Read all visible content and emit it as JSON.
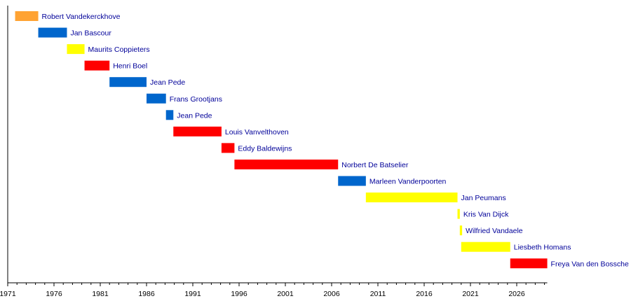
{
  "chart_data": {
    "type": "timeline",
    "title": "",
    "xlabel": "",
    "ylabel": "",
    "xlim": [
      1971,
      2029.3
    ],
    "xticks": [
      1971,
      1976,
      1981,
      1986,
      1991,
      1996,
      2001,
      2006,
      2011,
      2016,
      2021,
      2026
    ],
    "minor_tick_step": 1,
    "grid": false,
    "colors": {
      "orange": "#FFA333",
      "blue": "#0066CC",
      "yellow": "#FFFF00",
      "red": "#FF0000",
      "label": "#000099",
      "axis": "#000000"
    },
    "series": [
      {
        "name": "Robert Vandekerckhove",
        "start": 1971.8,
        "end": 1974.3,
        "color": "orange"
      },
      {
        "name": "Jan Bascour",
        "start": 1974.3,
        "end": 1977.4,
        "color": "blue"
      },
      {
        "name": "Maurits Coppieters",
        "start": 1977.4,
        "end": 1979.3,
        "color": "yellow"
      },
      {
        "name": "Henri Boel",
        "start": 1979.3,
        "end": 1982.0,
        "color": "red"
      },
      {
        "name": "Jean Pede",
        "start": 1982.0,
        "end": 1986.0,
        "color": "blue"
      },
      {
        "name": "Frans Grootjans",
        "start": 1986.0,
        "end": 1988.1,
        "color": "blue"
      },
      {
        "name": "Jean Pede",
        "start": 1988.1,
        "end": 1988.9,
        "color": "blue"
      },
      {
        "name": "Louis Vanvelthoven",
        "start": 1988.9,
        "end": 1994.1,
        "color": "red"
      },
      {
        "name": "Eddy Baldewijns",
        "start": 1994.1,
        "end": 1995.5,
        "color": "red"
      },
      {
        "name": "Norbert De Batselier",
        "start": 1995.5,
        "end": 2006.7,
        "color": "red"
      },
      {
        "name": "Marleen Vanderpoorten",
        "start": 2006.7,
        "end": 2009.7,
        "color": "blue"
      },
      {
        "name": "Jan Peumans",
        "start": 2009.7,
        "end": 2019.6,
        "color": "yellow"
      },
      {
        "name": "Kris Van Dijck",
        "start": 2019.6,
        "end": 2019.85,
        "color": "yellow"
      },
      {
        "name": "Wilfried Vandaele",
        "start": 2019.85,
        "end": 2020.1,
        "color": "yellow"
      },
      {
        "name": "Liesbeth Homans",
        "start": 2020.0,
        "end": 2025.3,
        "color": "yellow"
      },
      {
        "name": "Freya Van den Bossche",
        "start": 2025.3,
        "end": 2029.3,
        "color": "red"
      }
    ]
  }
}
